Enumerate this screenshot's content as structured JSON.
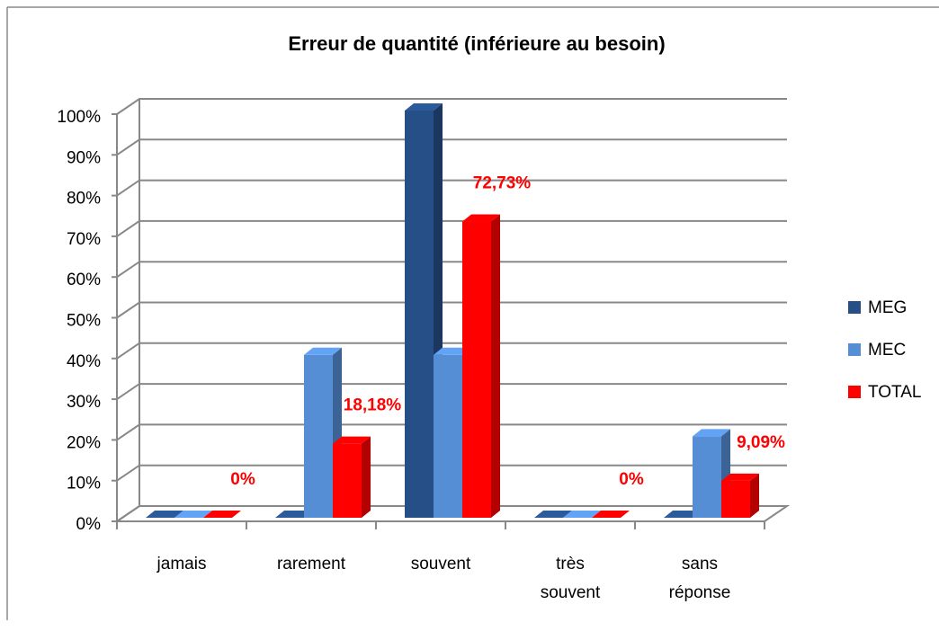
{
  "chart_data": {
    "type": "bar3d",
    "title": "Erreur de quantité (inférieure au besoin)",
    "categories": [
      "jamais",
      "rarement",
      "souvent",
      "très souvent",
      "sans réponse"
    ],
    "series": [
      {
        "name": "MEG",
        "color": "#264f87",
        "values": [
          0,
          0,
          100,
          0,
          0
        ]
      },
      {
        "name": "MEC",
        "color": "#558ed5",
        "values": [
          0,
          40,
          40,
          0,
          20
        ]
      },
      {
        "name": "TOTAL",
        "color": "#ff0000",
        "values": [
          0,
          18.18,
          72.73,
          0,
          9.09
        ],
        "value_labels": [
          "0%",
          "18,18%",
          "72,73%",
          "0%",
          "9,09%"
        ]
      }
    ],
    "ylim": [
      0,
      100
    ],
    "yticks": [
      {
        "value": 0,
        "label": "0%"
      },
      {
        "value": 10,
        "label": "10%"
      },
      {
        "value": 20,
        "label": "20%"
      },
      {
        "value": 30,
        "label": "30%"
      },
      {
        "value": 40,
        "label": "40%"
      },
      {
        "value": 50,
        "label": "50%"
      },
      {
        "value": 60,
        "label": "60%"
      },
      {
        "value": 70,
        "label": "70%"
      },
      {
        "value": 80,
        "label": "80%"
      },
      {
        "value": 90,
        "label": "90%"
      },
      {
        "value": 100,
        "label": "100%"
      }
    ],
    "grid": true,
    "legend": "right"
  }
}
